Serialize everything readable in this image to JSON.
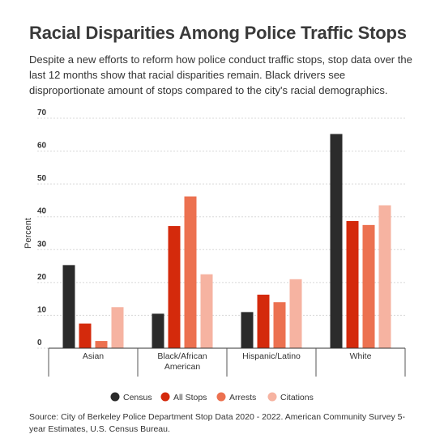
{
  "title": "Racial Disparities Among Police Traffic Stops",
  "subtitle": "Despite a new efforts to reform how police conduct traffic stops, stop data over the last 12 months show that racial disparities remain. Black drivers see disproportionate amount of stops compared to the city's racial demographics.",
  "source": "Source: City of Berkeley Police Department Stop Data 2020 - 2022. American Community Survey 5-year Estimates, U.S. Census Bureau.",
  "chart_data": {
    "type": "bar",
    "categories": [
      [
        "Asian"
      ],
      [
        "Black/African",
        "American"
      ],
      [
        "Hispanic/Latino"
      ],
      [
        "White"
      ]
    ],
    "series": [
      {
        "name": "Census",
        "color": "#2b2b2b",
        "values": [
          25.3,
          10.5,
          11.0,
          65.2
        ]
      },
      {
        "name": "All Stops",
        "color": "#d42a0c",
        "values": [
          7.5,
          37.2,
          16.3,
          38.7
        ]
      },
      {
        "name": "Arrests",
        "color": "#ec7150",
        "values": [
          2.2,
          46.2,
          14.0,
          37.5
        ]
      },
      {
        "name": "Citations",
        "color": "#f6b3a1",
        "values": [
          12.5,
          22.5,
          21.0,
          43.5
        ]
      }
    ],
    "xlabel": "",
    "ylabel": "Percent",
    "ylim": [
      0,
      70
    ],
    "yticks": [
      0,
      10,
      20,
      30,
      40,
      50,
      60,
      70
    ],
    "grid": true,
    "legend": "bottom"
  }
}
